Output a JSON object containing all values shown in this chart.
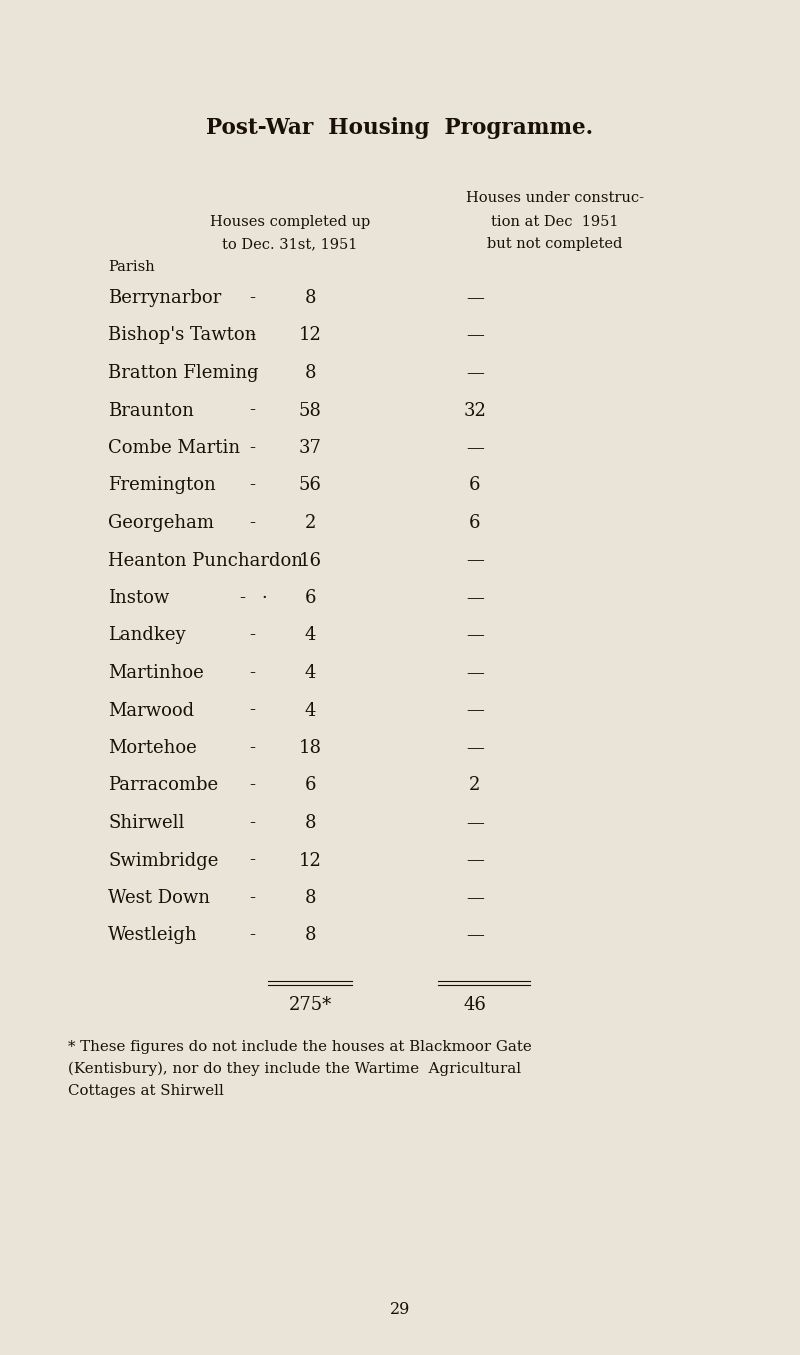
{
  "title": "Post-War  Housing  Programme.",
  "bg_color": "#EAE4D8",
  "text_color": "#1a1008",
  "col1_header": "Parish",
  "col2_header_line1": "Houses completed up",
  "col2_header_line2": "to Dec. 31st, 1951",
  "col3_header_line0": "Houses under construc-",
  "col3_header_line1": "tion at Dec  1951",
  "col3_header_line2": "but not completed",
  "parishes": [
    "Berrynarbor",
    "Bishop's Tawton",
    "Bratton Fleming",
    "Braunton",
    "Combe Martin",
    "Fremington",
    "Georgeham",
    "Heanton Punchardon",
    "Instow",
    "Landkey",
    "Martinhoe",
    "Marwood",
    "Mortehoe",
    "Parracombe",
    "Shirwell",
    "Swimbridge",
    "West Down",
    "Westleigh"
  ],
  "has_dash": [
    true,
    true,
    true,
    true,
    true,
    true,
    true,
    false,
    true,
    true,
    true,
    true,
    true,
    true,
    true,
    true,
    true,
    true
  ],
  "instow_dots": true,
  "completed": [
    8,
    12,
    8,
    58,
    37,
    56,
    2,
    16,
    6,
    4,
    4,
    4,
    18,
    6,
    8,
    12,
    8,
    8
  ],
  "under_construction": [
    null,
    null,
    null,
    32,
    null,
    6,
    6,
    null,
    null,
    null,
    null,
    null,
    null,
    2,
    null,
    null,
    null,
    null
  ],
  "total_completed": "275*",
  "total_under": "46",
  "footnote_line1": "* These figures do not include the houses at Blackmoor Gate",
  "footnote_line2": "(Kentisbury), nor do they include the Wartime  Agricultural",
  "footnote_line3": "Cottages at Shirwell",
  "page_number": "29",
  "dash_symbol": "—"
}
